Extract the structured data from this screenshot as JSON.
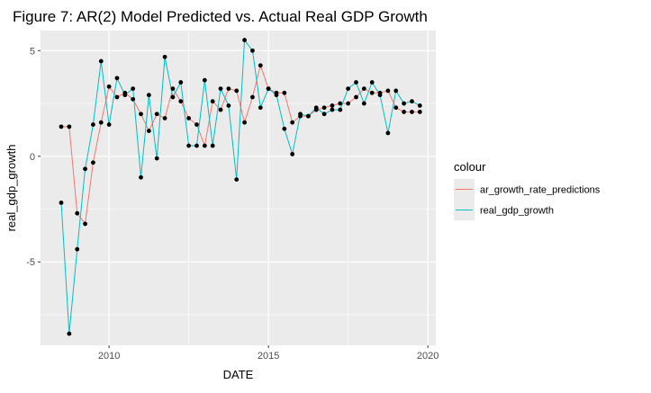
{
  "chart_data": {
    "type": "line",
    "title": "Figure 7: AR(2) Model Predicted vs. Actual Real GDP Growth",
    "xlabel": "DATE",
    "ylabel": "real_gdp_growth",
    "xlim": [
      2007.85,
      2020.25
    ],
    "ylim": [
      -8.95,
      5.95
    ],
    "x_ticks": [
      2010,
      2015,
      2020
    ],
    "y_ticks": [
      -5,
      0,
      5
    ],
    "x_tick_labels": [
      "2010",
      "2015",
      "2020"
    ],
    "y_tick_labels": [
      "-5",
      "0",
      "5"
    ],
    "grid": true,
    "legend_position": "right",
    "legend_title": "colour",
    "colors": {
      "panel_background": "#ebebeb",
      "grid": "#ffffff",
      "ar_growth_rate_predictions": "#f8766d",
      "real_gdp_growth": "#00bfc4",
      "points": "#000000"
    },
    "series": [
      {
        "name": "ar_growth_rate_predictions",
        "color": "#f8766d",
        "x": [
          2008.5,
          2008.75,
          2009.0,
          2009.25,
          2009.5,
          2009.75,
          2010.0,
          2010.25,
          2010.5,
          2010.75,
          2011.0,
          2011.25,
          2011.5,
          2011.75,
          2012.0,
          2012.25,
          2012.5,
          2012.75,
          2013.0,
          2013.25,
          2013.5,
          2013.75,
          2014.0,
          2014.25,
          2014.5,
          2014.75,
          2015.0,
          2015.25,
          2015.5,
          2015.75,
          2016.0,
          2016.25,
          2016.5,
          2016.75,
          2017.0,
          2017.25,
          2017.5,
          2017.75,
          2018.0,
          2018.25,
          2018.5,
          2018.75,
          2019.0,
          2019.25,
          2019.5,
          2019.75
        ],
        "y": [
          1.4,
          1.4,
          -2.7,
          -3.2,
          -0.3,
          1.6,
          3.3,
          2.8,
          3.0,
          2.7,
          2.0,
          1.2,
          2.0,
          1.8,
          3.2,
          2.6,
          1.8,
          1.5,
          0.5,
          2.6,
          2.2,
          3.2,
          3.1,
          1.6,
          2.8,
          4.3,
          3.2,
          3.0,
          3.0,
          1.6,
          1.9,
          1.9,
          2.2,
          2.3,
          2.4,
          2.5,
          2.5,
          2.8,
          3.2,
          3.0,
          3.0,
          3.1,
          2.3,
          2.1,
          2.1,
          2.1
        ]
      },
      {
        "name": "real_gdp_growth",
        "color": "#00bfc4",
        "x": [
          2008.5,
          2008.75,
          2009.0,
          2009.25,
          2009.5,
          2009.75,
          2010.0,
          2010.25,
          2010.5,
          2010.75,
          2011.0,
          2011.25,
          2011.5,
          2011.75,
          2012.0,
          2012.25,
          2012.5,
          2012.75,
          2013.0,
          2013.25,
          2013.5,
          2013.75,
          2014.0,
          2014.25,
          2014.5,
          2014.75,
          2015.0,
          2015.25,
          2015.5,
          2015.75,
          2016.0,
          2016.25,
          2016.5,
          2016.75,
          2017.0,
          2017.25,
          2017.5,
          2017.75,
          2018.0,
          2018.25,
          2018.5,
          2018.75,
          2019.0,
          2019.25,
          2019.5,
          2019.75
        ],
        "y": [
          -2.2,
          -8.4,
          -4.4,
          -0.6,
          1.5,
          4.5,
          1.5,
          3.7,
          2.9,
          3.2,
          -1.0,
          2.9,
          -0.1,
          4.7,
          2.8,
          3.5,
          0.5,
          0.5,
          3.6,
          0.5,
          3.2,
          2.4,
          -1.1,
          5.5,
          5.0,
          2.3,
          3.2,
          2.9,
          1.3,
          0.1,
          2.0,
          1.9,
          2.3,
          2.0,
          2.2,
          2.2,
          3.2,
          3.5,
          2.5,
          3.5,
          2.9,
          1.1,
          3.1,
          2.5,
          2.6,
          2.4
        ]
      }
    ]
  }
}
